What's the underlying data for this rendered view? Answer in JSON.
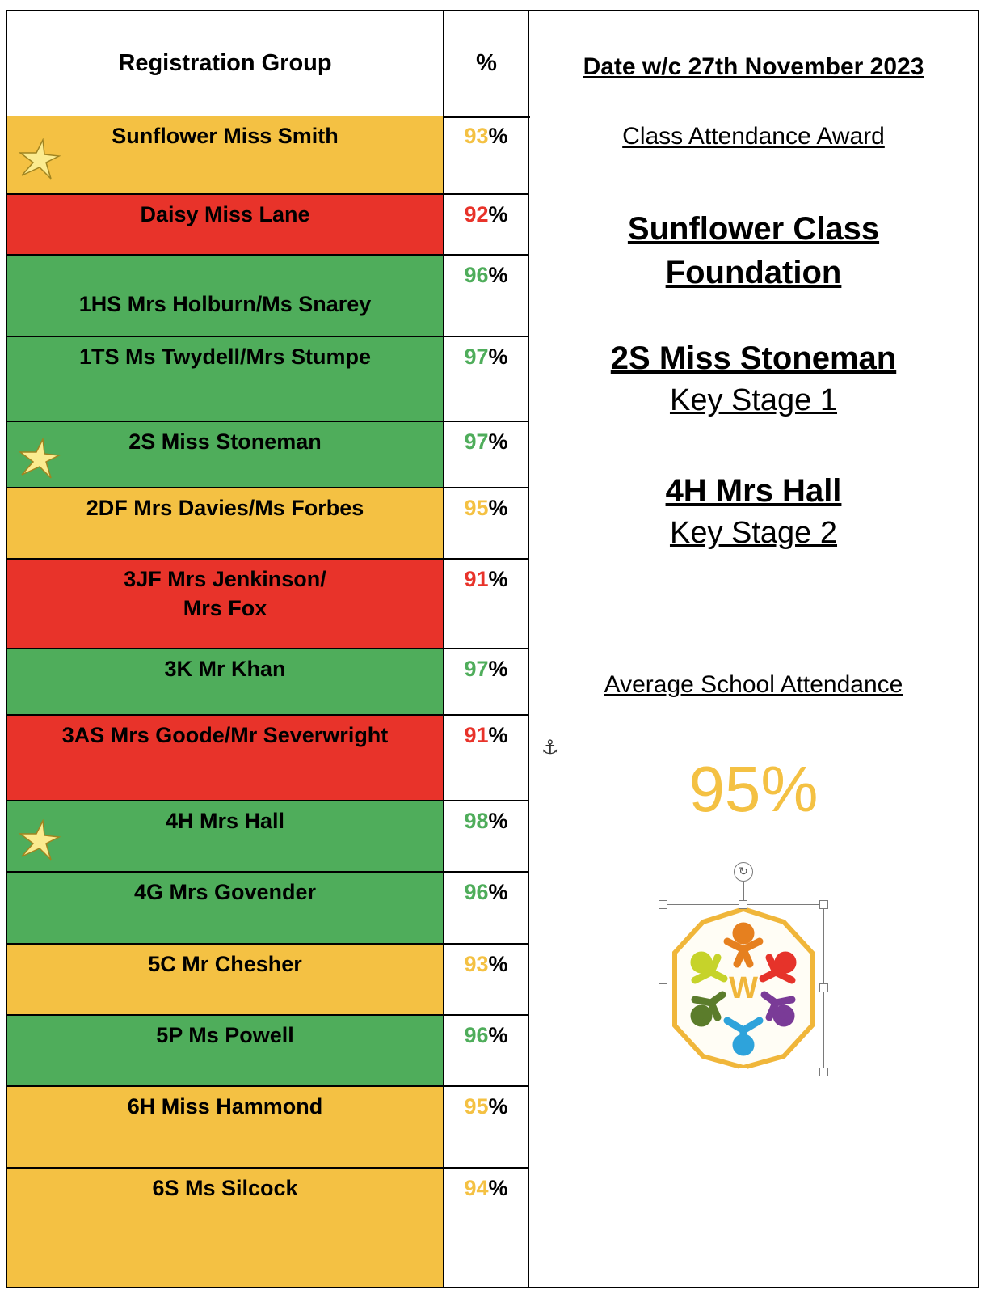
{
  "table": {
    "header_group": "Registration Group",
    "header_pct": "%",
    "percent_sign": "%",
    "rows": [
      {
        "label": "Sunflower   Miss Smith",
        "value": "93",
        "status": "amber",
        "star": true
      },
      {
        "label": "Daisy    Miss Lane",
        "value": "92",
        "status": "red",
        "star": false
      },
      {
        "label": "1HS  Mrs Holburn/Ms Snarey",
        "value": "96",
        "status": "green",
        "star": false
      },
      {
        "label": "1TS  Ms Twydell/Mrs Stumpe",
        "value": "97",
        "status": "green",
        "star": false
      },
      {
        "label": "2S  Miss Stoneman",
        "value": "97",
        "status": "green",
        "star": true
      },
      {
        "label": "2DF  Mrs Davies/Ms Forbes",
        "value": "95",
        "status": "amber",
        "star": false
      },
      {
        "label": "3JF  Mrs Jenkinson/\nMrs Fox",
        "value": "91",
        "status": "red",
        "star": false
      },
      {
        "label": "3K   Mr Khan",
        "value": "97",
        "status": "green",
        "star": false
      },
      {
        "label": "3AS   Mrs Goode/Mr Severwright",
        "value": "91",
        "status": "red",
        "star": false
      },
      {
        "label": "4H  Mrs Hall",
        "value": "98",
        "status": "green",
        "star": true
      },
      {
        "label": "4G   Mrs Govender",
        "value": "96",
        "status": "green",
        "star": false
      },
      {
        "label": "5C  Mr Chesher",
        "value": "93",
        "status": "amber",
        "star": false
      },
      {
        "label": "5P  Ms Powell",
        "value": "96",
        "status": "green",
        "star": false
      },
      {
        "label": "6H  Miss Hammond",
        "value": "95",
        "status": "amber",
        "star": false
      },
      {
        "label": "6S  Ms Silcock",
        "value": "94",
        "status": "amber",
        "star": false
      }
    ]
  },
  "panel": {
    "date": "Date w/c 27th November 2023",
    "award_title": "Class Attendance Award",
    "foundation_line1": "Sunflower Class",
    "foundation_line2": "Foundation",
    "ks1_class": "2S  Miss Stoneman",
    "ks1_label": "Key Stage 1",
    "ks2_class": "4H  Mrs Hall",
    "ks2_label": "Key Stage 2",
    "average_label": "Average School Attendance",
    "average_value": "95%",
    "logo_letter": "W"
  },
  "colors": {
    "green": "#4fad5b",
    "amber": "#f4c143",
    "red": "#e8332a"
  }
}
